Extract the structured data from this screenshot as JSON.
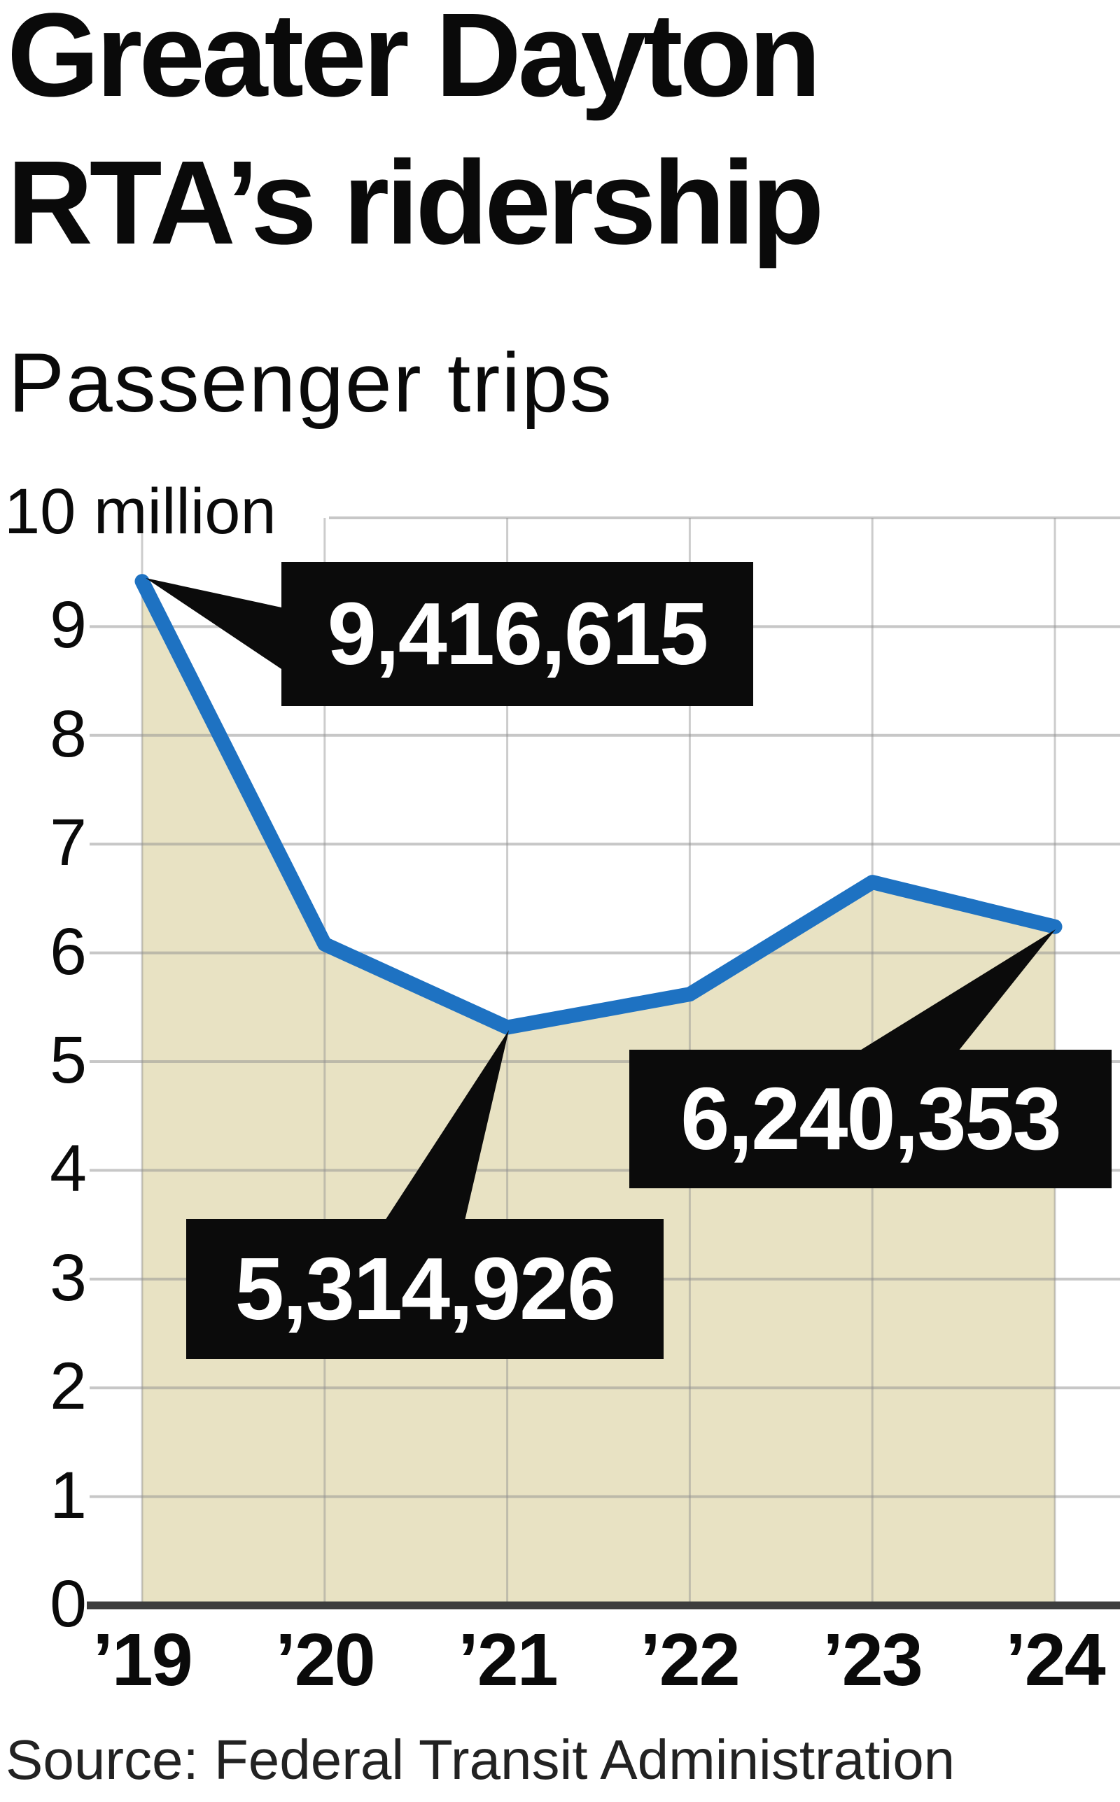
{
  "header": {
    "title_line1": "Greater Dayton",
    "title_line2": "RTA’s ridership",
    "subtitle": "Passenger trips"
  },
  "chart_data": {
    "type": "area",
    "title": "Greater Dayton RTA’s ridership",
    "subtitle": "Passenger trips",
    "unit": "millions of passenger trips per year",
    "categories": [
      "’19",
      "’20",
      "’21",
      "’22",
      "’23",
      "’24"
    ],
    "values_millions": [
      9.4166,
      6.08,
      5.3149,
      5.62,
      6.65,
      6.2404
    ],
    "exact_labeled_values": {
      "2019": "9,416,615",
      "2021": "5,314,926",
      "2024": "6,240,353"
    },
    "y_axis_top_label": "10 million",
    "y_tick_labels": [
      "9",
      "8",
      "7",
      "6",
      "5",
      "4",
      "3",
      "2",
      "1",
      "0"
    ],
    "ylim": [
      0,
      10
    ],
    "grid": true,
    "legend": "none",
    "callouts": [
      {
        "year": "’19",
        "label": "9,416,615"
      },
      {
        "year": "’21",
        "label": "5,314,926"
      },
      {
        "year": "’24",
        "label": "6,240,353"
      }
    ],
    "colors": {
      "line": "#1e72c2",
      "area_fill": "#e8e2c3",
      "gridline": "#c9c9c9",
      "baseline": "#3d3d3d",
      "callout_bg": "#0b0b0b",
      "callout_text": "#ffffff"
    }
  },
  "footer": {
    "source": "Source: Federal Transit Administration"
  }
}
